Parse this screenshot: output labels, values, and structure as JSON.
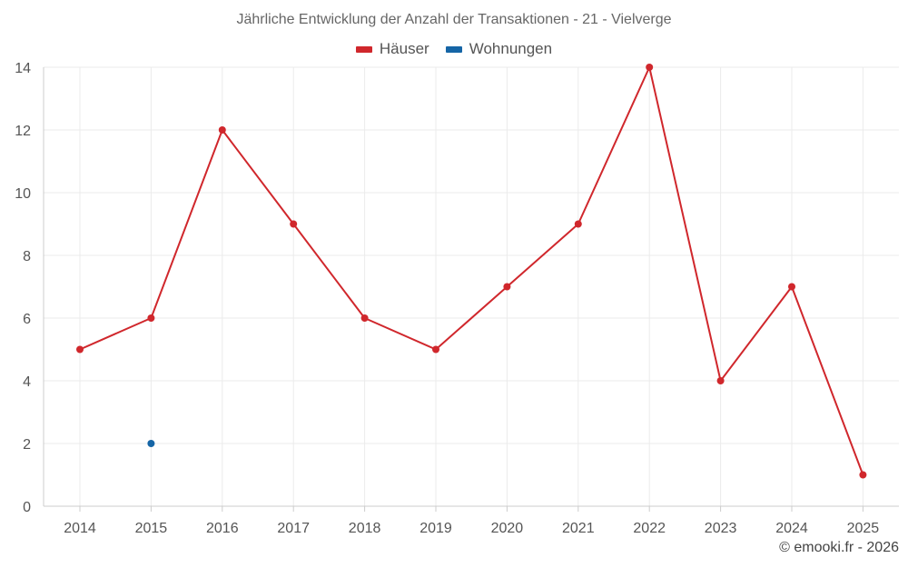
{
  "chart_data": {
    "type": "line",
    "title": "Jährliche Entwicklung der Anzahl der Transaktionen - 21 - Vielverge",
    "xlabel": "",
    "ylabel": "",
    "categories": [
      "2014",
      "2015",
      "2016",
      "2017",
      "2018",
      "2019",
      "2020",
      "2021",
      "2022",
      "2023",
      "2024",
      "2025"
    ],
    "ylim": [
      0,
      14
    ],
    "yticks": [
      0,
      2,
      4,
      6,
      8,
      10,
      12,
      14
    ],
    "grid": true,
    "legend_position": "top-center",
    "series": [
      {
        "name": "Häuser",
        "color": "#d0272c",
        "values": [
          5,
          6,
          12,
          9,
          6,
          5,
          7,
          9,
          14,
          4,
          7,
          1
        ]
      },
      {
        "name": "Wohnungen",
        "color": "#1565a6",
        "values": [
          null,
          2,
          null,
          null,
          null,
          null,
          null,
          null,
          null,
          null,
          null,
          null
        ]
      }
    ]
  },
  "credit": "© emooki.fr - 2026"
}
